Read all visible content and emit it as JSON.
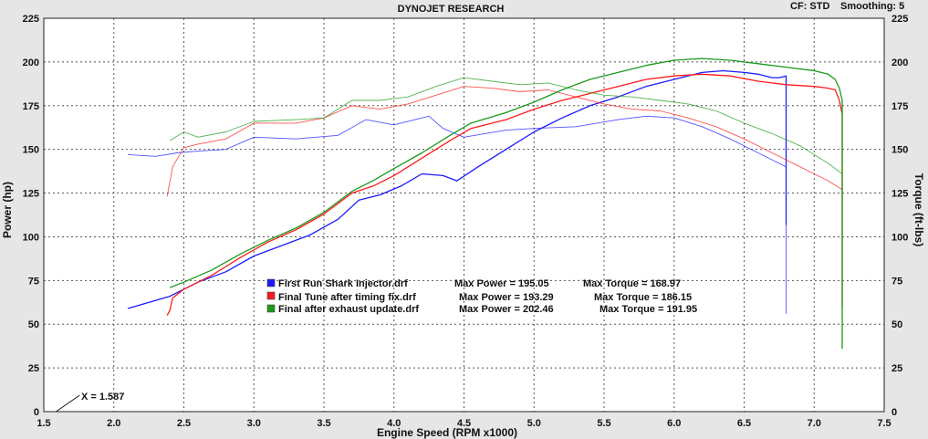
{
  "header": {
    "title": "DYNOJET RESEARCH",
    "correction": "CF: STD",
    "smoothing": "Smoothing: 5"
  },
  "cursor": {
    "readout": "X = 1.587",
    "x": 1.587
  },
  "legend": [
    {
      "file": "First Run Shark Injector.drf",
      "power_text": "Max Power = 195.05",
      "torque_text": "Max Torque = 168.97",
      "color": "#1a1aff"
    },
    {
      "file": "Final Tune after timing fix.drf",
      "power_text": "Max Power = 193.29",
      "torque_text": "Max Torque = 186.15",
      "color": "#ff1a1a"
    },
    {
      "file": "Final after exhaust update.drf",
      "power_text": "Max Power = 202.46",
      "torque_text": "Max Torque = 191.95",
      "color": "#1a9a1a"
    }
  ],
  "chart_data": {
    "type": "line",
    "title": "DYNOJET RESEARCH",
    "xlabel": "Engine Speed (RPM x1000)",
    "ylabel": "Power (hp)",
    "y2label": "Torque (ft-lbs)",
    "xlim": [
      1.5,
      7.5
    ],
    "ylim": [
      0,
      225
    ],
    "y2lim": [
      0,
      225
    ],
    "xticks": [
      "1.5",
      "2.0",
      "2.5",
      "3.0",
      "3.5",
      "4.0",
      "4.5",
      "5.0",
      "5.5",
      "6.0",
      "6.5",
      "7.0",
      "7.5"
    ],
    "yticks": [
      "0",
      "25",
      "50",
      "75",
      "100",
      "125",
      "150",
      "175",
      "200",
      "225"
    ],
    "y2ticks": [
      "0",
      "25",
      "50",
      "75",
      "100",
      "125",
      "150",
      "175",
      "200",
      "225"
    ],
    "grid": true,
    "series": [
      {
        "name": "First Run Shark Injector.drf",
        "color": "#1a1aff",
        "power": {
          "x": [
            2.1,
            2.4,
            2.6,
            2.8,
            3.0,
            3.2,
            3.4,
            3.6,
            3.75,
            3.9,
            4.05,
            4.2,
            4.35,
            4.45,
            4.6,
            4.8,
            5.0,
            5.2,
            5.4,
            5.6,
            5.8,
            6.0,
            6.2,
            6.35,
            6.5,
            6.6,
            6.7,
            6.75,
            6.8,
            6.8,
            6.8,
            6.8
          ],
          "y": [
            59,
            66,
            74,
            80,
            89,
            95,
            101,
            110,
            121,
            124,
            129,
            136,
            135,
            132,
            140,
            150,
            160,
            168,
            175,
            180,
            186,
            190,
            194,
            195,
            194,
            193,
            191,
            191,
            192,
            189,
            107,
            160
          ]
        },
        "torque": {
          "x": [
            2.1,
            2.3,
            2.45,
            2.6,
            2.8,
            3.0,
            3.3,
            3.6,
            3.8,
            4.0,
            4.15,
            4.25,
            4.35,
            4.5,
            4.8,
            5.0,
            5.3,
            5.6,
            5.8,
            6.0,
            6.2,
            6.4,
            6.6,
            6.75,
            6.8,
            6.8
          ],
          "y": [
            147,
            146,
            148,
            149,
            150,
            157,
            156,
            158,
            167,
            164,
            167,
            169,
            162,
            157,
            161,
            162,
            163,
            167,
            169,
            168,
            163,
            156,
            148,
            142,
            140,
            56
          ]
        }
      },
      {
        "name": "Final Tune after timing fix.drf",
        "color": "#ff1a1a",
        "power": {
          "x": [
            2.38,
            2.4,
            2.42,
            2.5,
            2.7,
            2.9,
            3.1,
            3.3,
            3.5,
            3.7,
            3.85,
            4.0,
            4.2,
            4.4,
            4.55,
            4.8,
            5.0,
            5.2,
            5.4,
            5.6,
            5.8,
            6.0,
            6.2,
            6.4,
            6.6,
            6.8,
            7.0,
            7.1,
            7.15,
            7.18,
            7.2,
            7.2,
            7.2
          ],
          "y": [
            55,
            58,
            65,
            70,
            78,
            88,
            97,
            104,
            113,
            125,
            129,
            135,
            145,
            155,
            162,
            167,
            173,
            178,
            182,
            186,
            190,
            192,
            193,
            192,
            189,
            187,
            186,
            185,
            184,
            178,
            170,
            110,
            60
          ]
        },
        "torque": {
          "x": [
            2.38,
            2.42,
            2.5,
            2.6,
            2.8,
            3.0,
            3.3,
            3.5,
            3.7,
            3.9,
            4.1,
            4.3,
            4.5,
            4.7,
            4.9,
            5.1,
            5.3,
            5.5,
            5.7,
            5.9,
            6.1,
            6.3,
            6.5,
            6.7,
            6.9,
            7.1,
            7.2,
            7.2
          ],
          "y": [
            123,
            140,
            151,
            153,
            156,
            165,
            165,
            168,
            175,
            173,
            176,
            181,
            186,
            185,
            183,
            184,
            180,
            176,
            173,
            172,
            168,
            163,
            156,
            148,
            140,
            132,
            127,
            118
          ]
        }
      },
      {
        "name": "Final after exhaust update.drf",
        "color": "#1a9a1a",
        "power": {
          "x": [
            2.4,
            2.5,
            2.7,
            2.9,
            3.1,
            3.3,
            3.5,
            3.7,
            3.85,
            4.0,
            4.2,
            4.4,
            4.55,
            4.8,
            5.0,
            5.2,
            5.4,
            5.6,
            5.8,
            6.0,
            6.2,
            6.4,
            6.6,
            6.8,
            7.0,
            7.1,
            7.15,
            7.18,
            7.2,
            7.2,
            7.2
          ],
          "y": [
            71,
            74,
            81,
            90,
            98,
            105,
            114,
            126,
            132,
            139,
            148,
            158,
            165,
            171,
            177,
            184,
            190,
            194,
            198,
            201,
            202,
            201,
            199,
            197,
            195,
            193,
            190,
            185,
            178,
            120,
            36
          ]
        },
        "torque": {
          "x": [
            2.4,
            2.5,
            2.6,
            2.8,
            3.0,
            3.3,
            3.5,
            3.7,
            3.9,
            4.1,
            4.3,
            4.5,
            4.7,
            4.9,
            5.1,
            5.3,
            5.5,
            5.7,
            5.9,
            6.1,
            6.3,
            6.5,
            6.7,
            6.9,
            7.1,
            7.2,
            7.2
          ],
          "y": [
            155,
            160,
            157,
            160,
            166,
            167,
            168,
            178,
            178,
            180,
            186,
            191,
            189,
            187,
            188,
            184,
            181,
            180,
            178,
            176,
            172,
            165,
            159,
            152,
            142,
            136,
            130
          ]
        }
      }
    ]
  }
}
